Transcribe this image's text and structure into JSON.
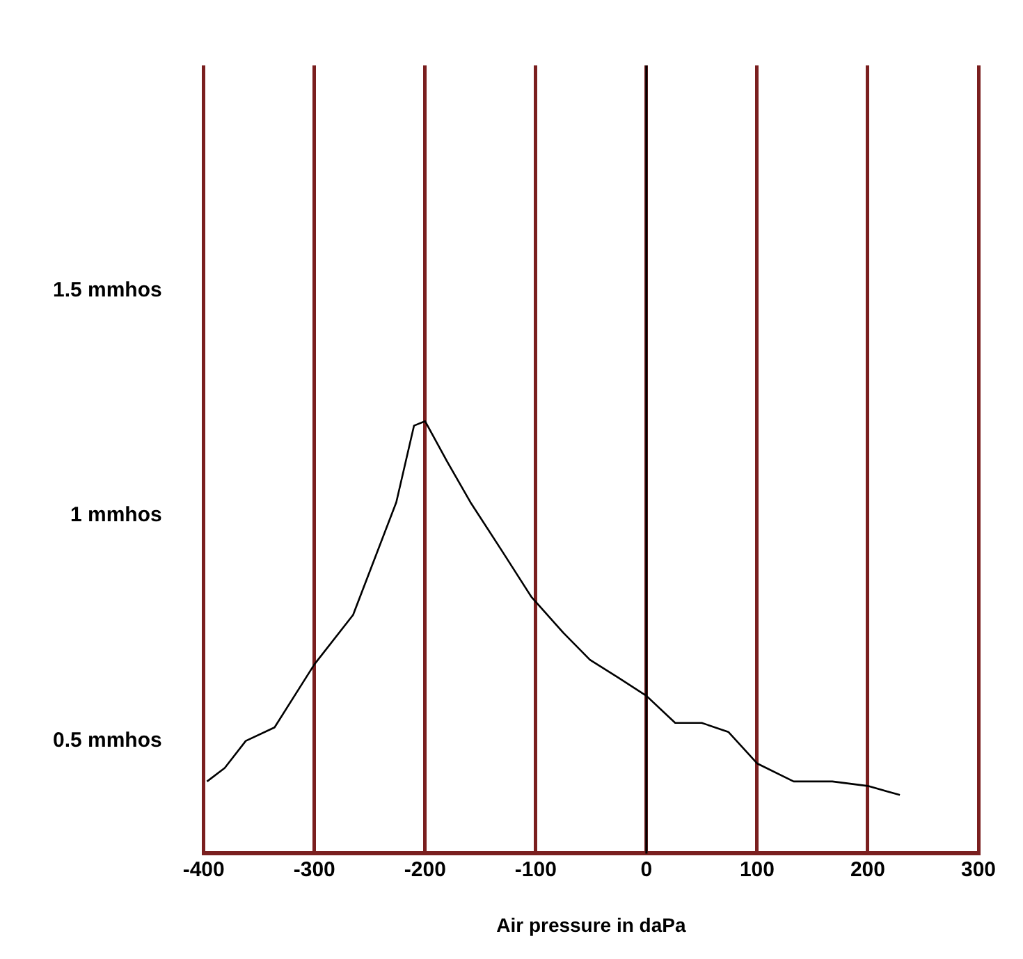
{
  "chart_data": {
    "type": "line",
    "xlabel": "Air pressure in daPa",
    "x": [
      -397,
      -381,
      -362,
      -336,
      -300,
      -265,
      -226,
      -210,
      -200,
      -180,
      -159,
      -130,
      -104,
      -75,
      -51,
      -25,
      0,
      26,
      50,
      74,
      100,
      133,
      168,
      200,
      229
    ],
    "series": [
      {
        "color": "#000000",
        "values": [
          0.41,
          0.44,
          0.5,
          0.53,
          0.67,
          0.78,
          1.03,
          1.2,
          1.21,
          1.12,
          1.03,
          0.92,
          0.82,
          0.74,
          0.68,
          0.64,
          0.6,
          0.54,
          0.54,
          0.52,
          0.45,
          0.41,
          0.41,
          0.4,
          0.38
        ]
      }
    ],
    "xlim": [
      -400,
      300
    ],
    "xticks": [
      -400,
      -300,
      -200,
      -100,
      0,
      100,
      200,
      300
    ],
    "ylim": [
      0.25,
      2.0
    ],
    "yticks": [
      {
        "value": 0.5,
        "label": "0.5 mmhos"
      },
      {
        "value": 1,
        "label": "1 mmhos"
      },
      {
        "value": 1.5,
        "label": "1.5 mmhos"
      }
    ],
    "grid": "x",
    "marker": "none",
    "line_style": "solid",
    "legend": false,
    "ref_lines": [
      {
        "axis": "x",
        "value": 0,
        "color": "#000000"
      }
    ]
  }
}
